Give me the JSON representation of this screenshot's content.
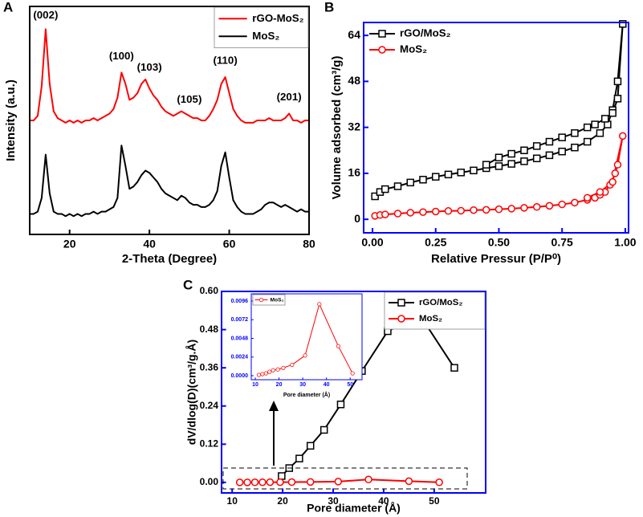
{
  "chart_data": [
    {
      "type": "line",
      "panel_label": "A",
      "xlabel": "2-Theta (Degree)",
      "ylabel": "Intensity (a.u.)",
      "xlim": [
        10,
        80
      ],
      "xticks": [
        20,
        40,
        60,
        80
      ],
      "ylim": [
        0,
        10
      ],
      "axis_color": "#000000",
      "tick_label_color": "#000000",
      "legend": "upper right",
      "legend_frame": true,
      "x": [
        10,
        11,
        12,
        13,
        14,
        15,
        16,
        17,
        18,
        19,
        20,
        21,
        22,
        23,
        24,
        25,
        26,
        27,
        28,
        29,
        30,
        31,
        32,
        33,
        34,
        35,
        36,
        37,
        38,
        39,
        40,
        41,
        42,
        43,
        44,
        45,
        46,
        47,
        48,
        49,
        50,
        51,
        52,
        53,
        54,
        55,
        56,
        57,
        58,
        59,
        60,
        61,
        62,
        63,
        64,
        65,
        66,
        67,
        68,
        69,
        70,
        71,
        72,
        73,
        74,
        75,
        76,
        77,
        78,
        79,
        80
      ],
      "series": [
        {
          "name": "rGO-MoS₂",
          "color": "#ff0000",
          "values": [
            5.0,
            5.0,
            5.2,
            6.5,
            9.0,
            6.6,
            5.4,
            5.1,
            5.0,
            4.9,
            5.0,
            4.9,
            5.0,
            4.9,
            5.0,
            5.0,
            5.1,
            5.0,
            5.1,
            5.2,
            5.3,
            5.5,
            6.0,
            7.1,
            6.6,
            5.9,
            6.0,
            6.2,
            6.6,
            6.8,
            6.4,
            6.1,
            5.9,
            5.6,
            5.4,
            5.3,
            5.2,
            5.3,
            5.4,
            5.3,
            5.2,
            5.1,
            5.1,
            5.0,
            5.0,
            5.2,
            5.5,
            5.9,
            6.6,
            6.9,
            6.2,
            5.5,
            5.2,
            5.0,
            4.9,
            4.9,
            4.9,
            5.0,
            5.0,
            5.0,
            5.1,
            5.0,
            5.0,
            5.0,
            5.1,
            5.3,
            5.0,
            5.0,
            4.9,
            5.0,
            5.0
          ]
        },
        {
          "name": "MoS₂",
          "color": "#000000",
          "values": [
            0.9,
            0.9,
            1.0,
            1.6,
            3.5,
            1.8,
            1.0,
            0.9,
            0.9,
            0.8,
            0.9,
            0.8,
            0.9,
            0.8,
            0.9,
            0.9,
            1.0,
            0.9,
            1.0,
            1.0,
            1.1,
            1.2,
            1.6,
            3.9,
            3.0,
            2.0,
            2.1,
            2.3,
            2.6,
            2.8,
            2.7,
            2.5,
            2.3,
            2.0,
            1.8,
            1.7,
            1.6,
            1.5,
            1.7,
            1.6,
            1.4,
            1.3,
            1.3,
            1.2,
            1.2,
            1.3,
            1.5,
            1.9,
            3.0,
            3.6,
            2.5,
            1.5,
            1.2,
            1.0,
            0.9,
            0.9,
            0.9,
            1.0,
            1.1,
            1.3,
            1.4,
            1.4,
            1.3,
            1.2,
            1.3,
            1.2,
            1.1,
            1.0,
            1.1,
            1.0,
            1.0
          ]
        }
      ],
      "annotations": [
        {
          "text": "(002)",
          "x": 14,
          "y": 9.6
        },
        {
          "text": "(100)",
          "x": 33,
          "y": 7.8
        },
        {
          "text": "(103)",
          "x": 40,
          "y": 7.3
        },
        {
          "text": "(105)",
          "x": 50,
          "y": 5.9
        },
        {
          "text": "(110)",
          "x": 59,
          "y": 7.6
        },
        {
          "text": "(201)",
          "x": 75,
          "y": 6.0
        }
      ]
    },
    {
      "type": "line",
      "panel_label": "B",
      "xlabel": "Relative Pressur (P/P⁰)",
      "ylabel": "Volume adsorbed (cm³/g)",
      "xlim": [
        -0.035,
        1.013
      ],
      "xticks": [
        {
          "value": 0,
          "label": "0.00"
        },
        {
          "value": 0.25,
          "label": "0.25"
        },
        {
          "value": 0.5,
          "label": "0.50"
        },
        {
          "value": 0.75,
          "label": "0.75"
        },
        {
          "value": 1,
          "label": "1.00"
        }
      ],
      "ylim": [
        -4.7,
        68.5
      ],
      "yticks": [
        0,
        16,
        32,
        48,
        64
      ],
      "axis_color": "#0000ff",
      "tick_label_color": "#000000",
      "legend": "upper left",
      "legend_frame": false,
      "series": [
        {
          "name": "rGO/MoS₂",
          "color": "#000000",
          "marker": "square",
          "x": [
            0.01,
            0.03,
            0.05,
            0.1,
            0.15,
            0.2,
            0.25,
            0.3,
            0.35,
            0.4,
            0.45,
            0.5,
            0.55,
            0.6,
            0.65,
            0.7,
            0.75,
            0.8,
            0.85,
            0.9,
            0.93,
            0.95,
            0.97,
            0.99,
            0.97,
            0.95,
            0.92,
            0.88,
            0.85,
            0.8,
            0.75,
            0.7,
            0.65,
            0.6,
            0.55,
            0.5,
            0.45
          ],
          "values": [
            8,
            9.5,
            10.5,
            11.5,
            12.8,
            13.8,
            14.8,
            15.6,
            16.3,
            17,
            17.8,
            18.5,
            19.3,
            20.2,
            21.2,
            22.3,
            23.6,
            25,
            27,
            30,
            33,
            38,
            48,
            68,
            42,
            37,
            35,
            33,
            32,
            30,
            28.5,
            27,
            25.5,
            24,
            22.8,
            21.5,
            19
          ]
        },
        {
          "name": "MoS₂",
          "color": "#ff0000",
          "marker": "circle",
          "x": [
            0.01,
            0.03,
            0.05,
            0.1,
            0.15,
            0.2,
            0.25,
            0.3,
            0.35,
            0.4,
            0.45,
            0.5,
            0.55,
            0.6,
            0.65,
            0.7,
            0.75,
            0.8,
            0.85,
            0.88,
            0.9,
            0.92,
            0.94,
            0.96,
            0.97,
            0.99,
            0.95,
            0.9,
            0.85
          ],
          "values": [
            1.2,
            1.5,
            1.7,
            2,
            2.3,
            2.5,
            2.7,
            2.9,
            3,
            3.2,
            3.3,
            3.5,
            3.7,
            4,
            4.3,
            4.7,
            5.2,
            5.8,
            6.8,
            7.5,
            8.5,
            9.5,
            12,
            16,
            19,
            29,
            13,
            9.5,
            7.5
          ]
        }
      ]
    },
    {
      "type": "line",
      "panel_label": "C",
      "xlabel": "Pore diameter (Å)",
      "ylabel": "dV/dlog(D)(cm³/g.Å)",
      "xlim": [
        7.9,
        60.2
      ],
      "xticks": [
        10,
        20,
        30,
        40,
        50
      ],
      "ylim": [
        -0.033,
        0.6
      ],
      "yticks": [
        {
          "value": 0,
          "label": "0.00"
        },
        {
          "value": 0.12,
          "label": "0.12"
        },
        {
          "value": 0.24,
          "label": "0.24"
        },
        {
          "value": 0.36,
          "label": "0.36"
        },
        {
          "value": 0.48,
          "label": "0.48"
        },
        {
          "value": 0.6,
          "label": "0.60"
        }
      ],
      "axis_color": "#0000ff",
      "tick_label_color": "#000000",
      "legend": "upper right",
      "legend_frame": true,
      "series": [
        {
          "name": "rGO/MoS₂",
          "color": "#000000",
          "marker": "square",
          "x": [
            19.8,
            21.3,
            23.3,
            25.5,
            28.2,
            31.5,
            35.7,
            40.8,
            47.2,
            54
          ],
          "values": [
            0.02,
            0.045,
            0.075,
            0.115,
            0.165,
            0.245,
            0.35,
            0.475,
            0.525,
            0.36
          ]
        },
        {
          "name": "MoS₂",
          "color": "#ff0000",
          "marker": "circle",
          "x": [
            11.5,
            13,
            14.5,
            16,
            17.5,
            19.5,
            21.8,
            25.5,
            31,
            37,
            45,
            51
          ],
          "values": [
            0.0001,
            0.0002,
            0.0003,
            0.0005,
            0.0007,
            0.0008,
            0.001,
            0.0014,
            0.0026,
            0.0092,
            0.0038,
            0.0003
          ]
        }
      ]
    },
    {
      "type": "line",
      "xlabel": "Pore diameter (Å)",
      "xlim": [
        8.3,
        55
      ],
      "xticks": [
        10,
        20,
        30,
        40,
        50
      ],
      "ylim": [
        -0.00052,
        0.01053
      ],
      "yticks": [
        {
          "value": 0,
          "label": "0.0000"
        },
        {
          "value": 0.0024,
          "label": "0.0024"
        },
        {
          "value": 0.0048,
          "label": "0.0048"
        },
        {
          "value": 0.0072,
          "label": "0.0072"
        },
        {
          "value": 0.0096,
          "label": "0.0096"
        }
      ],
      "axis_color": "#0000ff",
      "tick_label_color": "#0000ff",
      "legend": "upper left",
      "legend_frame": true,
      "series": [
        {
          "name": "MoS₂",
          "color": "#ff0000",
          "marker": "circle",
          "x": [
            11.5,
            13,
            14.5,
            16,
            17.5,
            19.5,
            21.8,
            25.5,
            31,
            37,
            45,
            51
          ],
          "values": [
            0.0001,
            0.0002,
            0.0003,
            0.0005,
            0.0007,
            0.0008,
            0.001,
            0.0014,
            0.0026,
            0.0092,
            0.0038,
            0.0003
          ]
        }
      ]
    }
  ]
}
